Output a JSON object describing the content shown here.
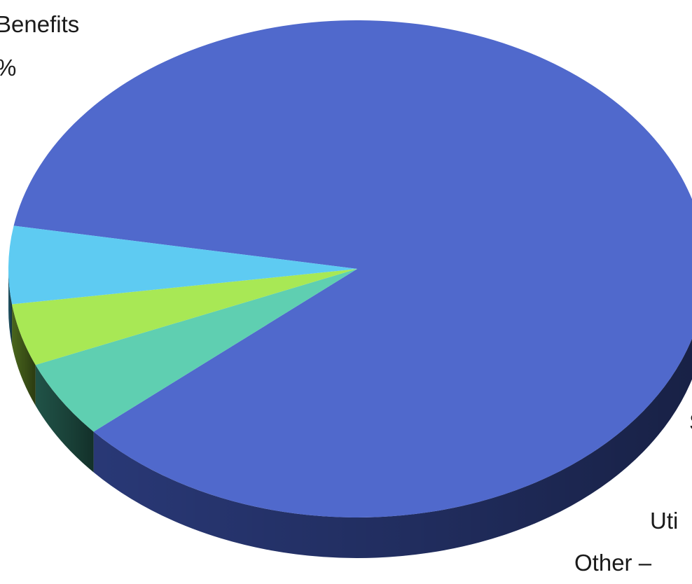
{
  "chart_data": {
    "type": "pie",
    "title": "",
    "style": "3d-tilted",
    "slices": [
      {
        "label": "Salaries and Benefits",
        "label_visible": "Benefits",
        "pct_visible": "%",
        "value": 85,
        "color": "#5069cc",
        "side_color": "#2b3b7c"
      },
      {
        "label": "Other",
        "label_visible": "Other –",
        "value": 5,
        "color": "#5fcfb1",
        "side_color": "#22574b"
      },
      {
        "label": "Utilities",
        "label_visible": "Uti",
        "value": 4,
        "color": "#a8e855",
        "side_color": "#4d6a1e"
      },
      {
        "label": "S",
        "label_visible": "S",
        "value": 5,
        "color": "#5ecbf2",
        "side_color": "#245a6c"
      }
    ]
  }
}
